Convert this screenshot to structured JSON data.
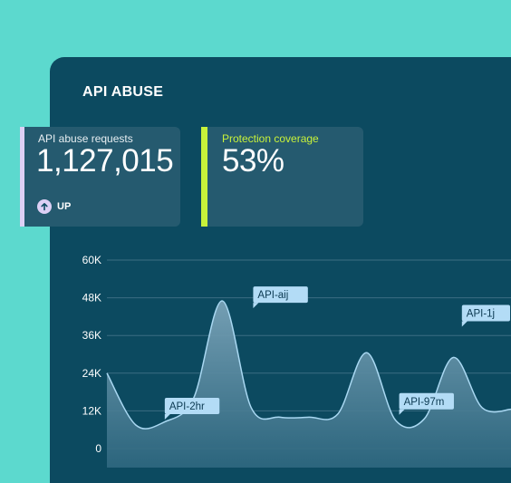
{
  "panel": {
    "title": "API ABUSE"
  },
  "stats": [
    {
      "label": "API abuse requests",
      "value": "1,127,015",
      "trend": "UP",
      "accent": "#ddd0f5"
    },
    {
      "label": "Protection coverage",
      "value": "53%",
      "accent": "#c8f23a"
    }
  ],
  "chart_data": {
    "type": "area",
    "title": "",
    "xlabel": "",
    "ylabel": "",
    "ylim": [
      0,
      60000
    ],
    "yticks": [
      0,
      12000,
      24000,
      36000,
      48000,
      60000
    ],
    "ytick_labels": [
      "0",
      "12K",
      "24K",
      "36K",
      "48K",
      "60K"
    ],
    "grid": true,
    "series": [
      {
        "values": [
          24000,
          7500,
          8500,
          16000,
          47000,
          13000,
          10000,
          10000,
          11000,
          30500,
          9000,
          9500,
          29000,
          13000,
          12500
        ]
      }
    ],
    "annotations": [
      {
        "label": "API-2hr",
        "index": 1
      },
      {
        "label": "API-aij",
        "index": 4
      },
      {
        "label": "API-97m",
        "index": 10
      },
      {
        "label": "API-1j",
        "index": 12
      }
    ],
    "colors": {
      "line": "#a9d8f2",
      "fill": "#6d95ab",
      "tag_bg": "#b3dcf6",
      "tag_text": "#0c3a52"
    }
  }
}
